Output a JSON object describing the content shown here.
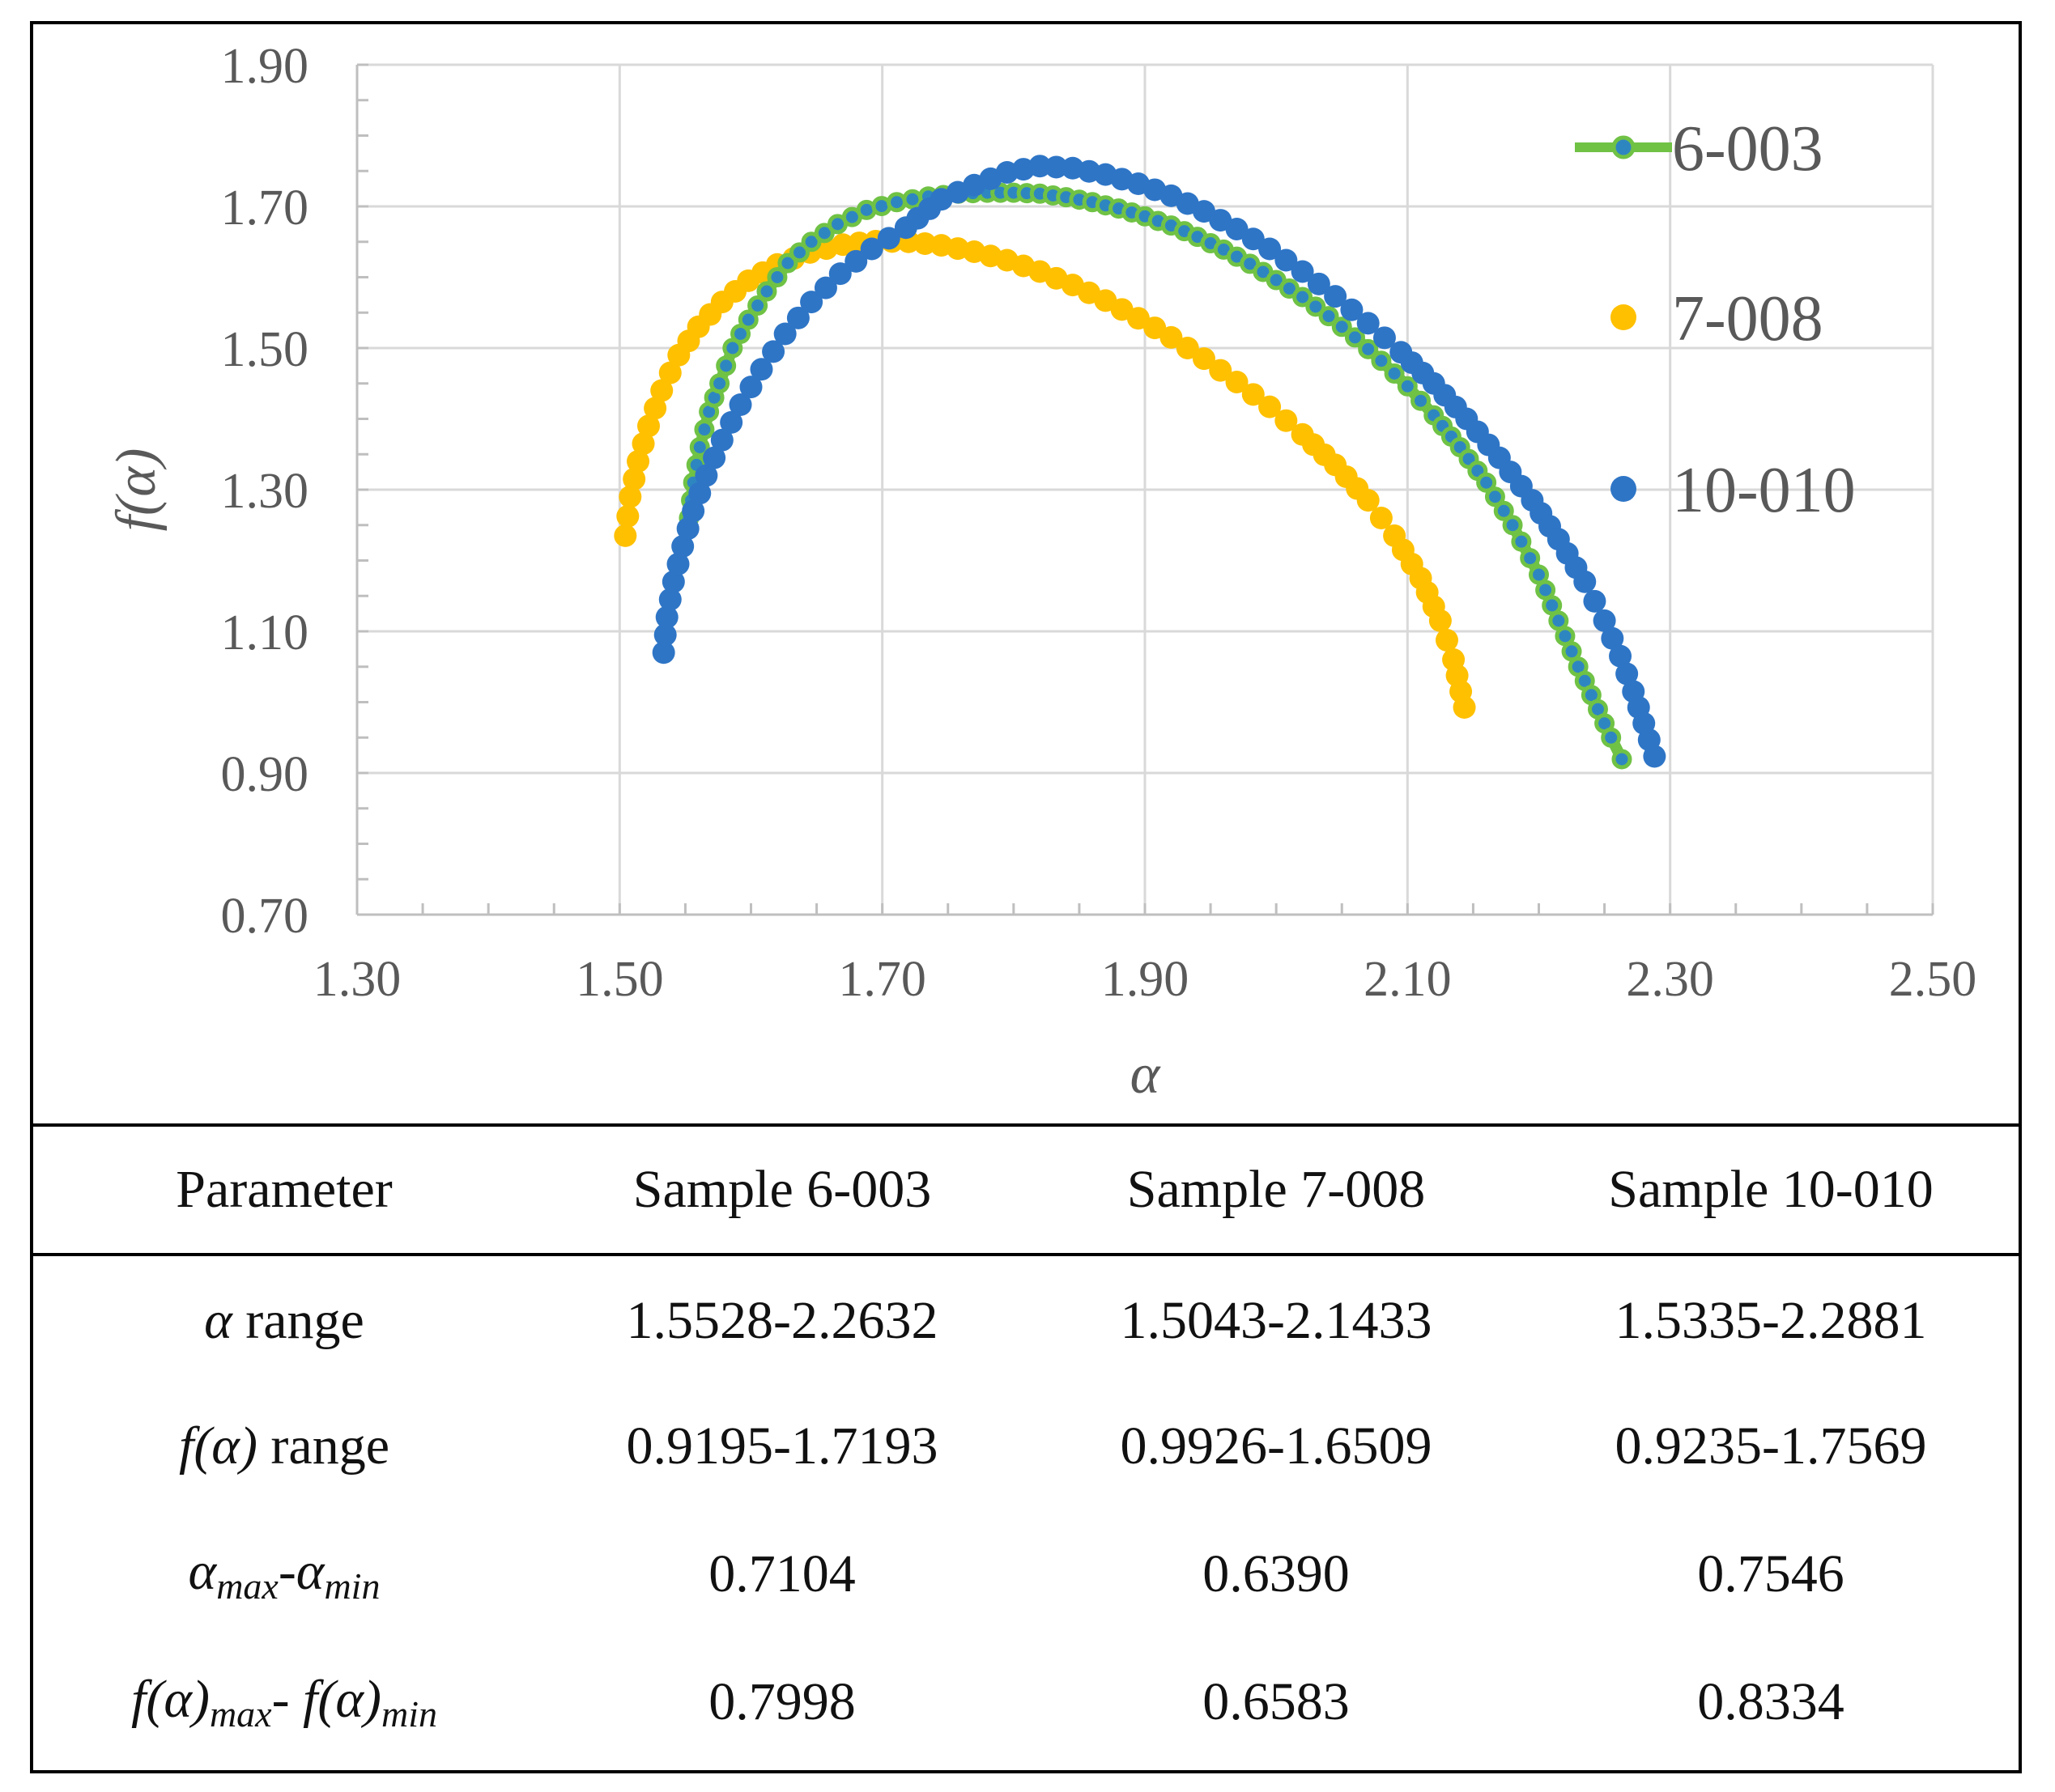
{
  "chart_data": {
    "type": "scatter",
    "title": "",
    "xlabel": "α",
    "ylabel": "f(α)",
    "xlim": [
      1.3,
      2.5
    ],
    "ylim": [
      0.7,
      1.9
    ],
    "x_ticks": [
      "1.30",
      "1.50",
      "1.70",
      "1.90",
      "2.10",
      "2.30",
      "2.50"
    ],
    "y_ticks": [
      "0.70",
      "0.90",
      "1.10",
      "1.30",
      "1.50",
      "1.70",
      "1.90"
    ],
    "grid": true,
    "legend_position": "top-right",
    "series": [
      {
        "name": "6-003",
        "color": "#70C245",
        "marker_color": "#2E86C1",
        "line": true,
        "points": [
          [
            1.5528,
            1.26
          ],
          [
            1.556,
            1.31
          ],
          [
            1.561,
            1.36
          ],
          [
            1.568,
            1.41
          ],
          [
            1.576,
            1.45
          ],
          [
            1.586,
            1.5
          ],
          [
            1.598,
            1.54
          ],
          [
            1.612,
            1.58
          ],
          [
            1.628,
            1.62
          ],
          [
            1.646,
            1.65
          ],
          [
            1.666,
            1.675
          ],
          [
            1.688,
            1.695
          ],
          [
            1.711,
            1.706
          ],
          [
            1.735,
            1.714
          ],
          [
            1.758,
            1.718
          ],
          [
            1.78,
            1.7193
          ],
          [
            1.8,
            1.7193
          ],
          [
            1.82,
            1.718
          ],
          [
            1.84,
            1.713
          ],
          [
            1.86,
            1.706
          ],
          [
            1.88,
            1.697
          ],
          [
            1.9,
            1.686
          ],
          [
            1.92,
            1.673
          ],
          [
            1.94,
            1.657
          ],
          [
            1.96,
            1.639
          ],
          [
            1.98,
            1.619
          ],
          [
            2.0,
            1.596
          ],
          [
            2.02,
            1.572
          ],
          [
            2.04,
            1.545
          ],
          [
            2.06,
            1.515
          ],
          [
            2.08,
            1.482
          ],
          [
            2.1,
            1.446
          ],
          [
            2.12,
            1.405
          ],
          [
            2.14,
            1.36
          ],
          [
            2.16,
            1.31
          ],
          [
            2.18,
            1.25
          ],
          [
            2.2,
            1.18
          ],
          [
            2.215,
            1.115
          ],
          [
            2.23,
            1.05
          ],
          [
            2.245,
            0.99
          ],
          [
            2.255,
            0.95
          ],
          [
            2.2632,
            0.9195
          ]
        ]
      },
      {
        "name": "7-008",
        "color": "#FFC000",
        "line": false,
        "points": [
          [
            1.5043,
            1.235
          ],
          [
            1.508,
            1.29
          ],
          [
            1.514,
            1.34
          ],
          [
            1.522,
            1.39
          ],
          [
            1.532,
            1.44
          ],
          [
            1.545,
            1.49
          ],
          [
            1.56,
            1.53
          ],
          [
            1.578,
            1.565
          ],
          [
            1.598,
            1.595
          ],
          [
            1.62,
            1.618
          ],
          [
            1.645,
            1.635
          ],
          [
            1.67,
            1.646
          ],
          [
            1.695,
            1.6509
          ],
          [
            1.72,
            1.65
          ],
          [
            1.745,
            1.645
          ],
          [
            1.77,
            1.636
          ],
          [
            1.795,
            1.624
          ],
          [
            1.82,
            1.608
          ],
          [
            1.845,
            1.589
          ],
          [
            1.87,
            1.567
          ],
          [
            1.895,
            1.542
          ],
          [
            1.92,
            1.515
          ],
          [
            1.945,
            1.485
          ],
          [
            1.97,
            1.452
          ],
          [
            1.995,
            1.417
          ],
          [
            2.02,
            1.378
          ],
          [
            2.045,
            1.335
          ],
          [
            2.07,
            1.285
          ],
          [
            2.09,
            1.235
          ],
          [
            2.11,
            1.175
          ],
          [
            2.125,
            1.115
          ],
          [
            2.135,
            1.06
          ],
          [
            2.1433,
            0.9926
          ]
        ]
      },
      {
        "name": "10-010",
        "color": "#2E75C6",
        "line": false,
        "points": [
          [
            1.5335,
            1.07
          ],
          [
            1.536,
            1.12
          ],
          [
            1.541,
            1.17
          ],
          [
            1.548,
            1.22
          ],
          [
            1.556,
            1.27
          ],
          [
            1.566,
            1.32
          ],
          [
            1.578,
            1.37
          ],
          [
            1.592,
            1.42
          ],
          [
            1.608,
            1.47
          ],
          [
            1.626,
            1.52
          ],
          [
            1.646,
            1.565
          ],
          [
            1.668,
            1.605
          ],
          [
            1.692,
            1.64
          ],
          [
            1.718,
            1.67
          ],
          [
            1.745,
            1.71
          ],
          [
            1.77,
            1.73
          ],
          [
            1.795,
            1.748
          ],
          [
            1.82,
            1.7569
          ],
          [
            1.845,
            1.754
          ],
          [
            1.87,
            1.745
          ],
          [
            1.895,
            1.732
          ],
          [
            1.92,
            1.715
          ],
          [
            1.945,
            1.693
          ],
          [
            1.97,
            1.668
          ],
          [
            1.995,
            1.64
          ],
          [
            2.02,
            1.608
          ],
          [
            2.045,
            1.573
          ],
          [
            2.07,
            1.535
          ],
          [
            2.095,
            1.494
          ],
          [
            2.12,
            1.45
          ],
          [
            2.145,
            1.4
          ],
          [
            2.17,
            1.345
          ],
          [
            2.195,
            1.285
          ],
          [
            2.215,
            1.23
          ],
          [
            2.235,
            1.17
          ],
          [
            2.25,
            1.115
          ],
          [
            2.262,
            1.065
          ],
          [
            2.272,
            1.015
          ],
          [
            2.28,
            0.97
          ],
          [
            2.2881,
            0.9235
          ]
        ]
      }
    ]
  },
  "table": {
    "headers": [
      "Parameter",
      "Sample  6-003",
      "Sample  7-008",
      "Sample  10-010"
    ],
    "rows": [
      {
        "label_parts": [
          "α",
          " range"
        ],
        "values": [
          "1.5528-2.2632",
          "1.5043-2.1433",
          "1.5335-2.2881"
        ]
      },
      {
        "label_parts": [
          "f(α)",
          " range"
        ],
        "values": [
          "0.9195-1.7193",
          "0.9926-1.6509",
          "0.9235-1.7569"
        ]
      },
      {
        "label_parts": [
          "α",
          "max",
          "-α",
          "min"
        ],
        "values": [
          "0.7104",
          "0.6390",
          "0.7546"
        ]
      },
      {
        "label_parts": [
          "f(α)",
          "max",
          "- f(α)",
          "min"
        ],
        "values": [
          "0.7998",
          "0.6583",
          "0.8334"
        ]
      }
    ]
  }
}
